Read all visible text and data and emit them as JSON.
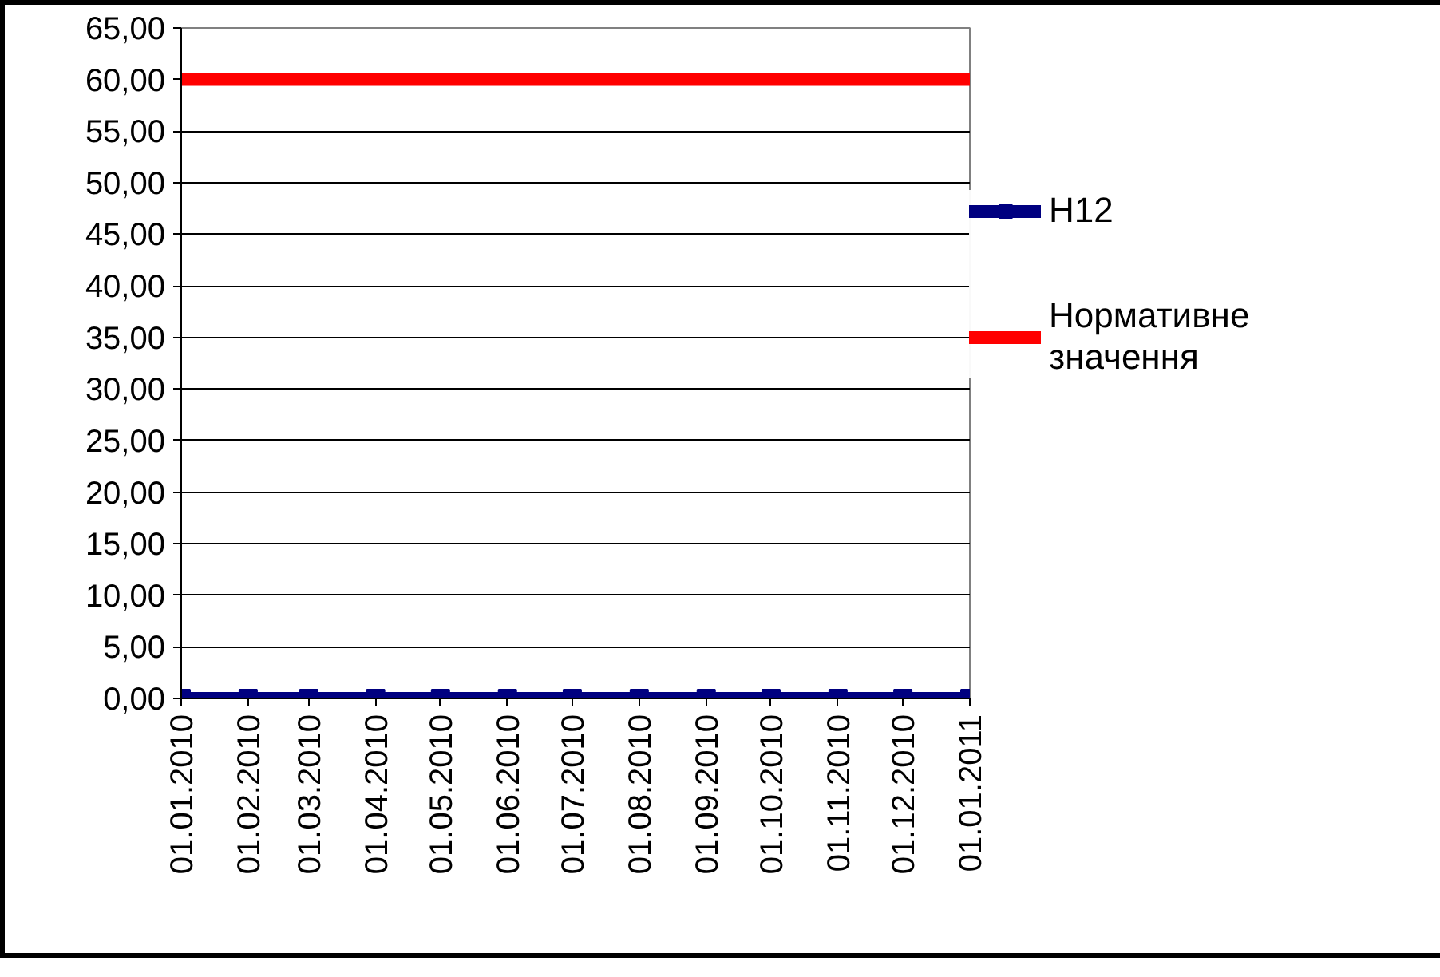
{
  "chart_data": {
    "type": "line",
    "x": [
      "2010-01-01",
      "2010-02-01",
      "2010-03-01",
      "2010-04-01",
      "2010-05-01",
      "2010-06-01",
      "2010-07-01",
      "2010-08-01",
      "2010-09-01",
      "2010-10-01",
      "2010-11-01",
      "2010-12-01",
      "2011-01-01"
    ],
    "series": [
      {
        "name": "Н12",
        "color": "#000080",
        "values": [
          0,
          0,
          0,
          0,
          0,
          0,
          0,
          0,
          0,
          0,
          0,
          0,
          0
        ],
        "marker": "square"
      },
      {
        "name": "Нормативне значення",
        "color": "#ff0000",
        "values": [
          60,
          60,
          60,
          60,
          60,
          60,
          60,
          60,
          60,
          60,
          60,
          60,
          60
        ],
        "marker": "none"
      }
    ],
    "xlim": [
      "2010-01-01",
      "2011-01-01"
    ],
    "xticks": [
      {
        "value": "2010-01-01",
        "label": "01.01.2010"
      },
      {
        "value": "2010-02-01",
        "label": "01.02.2010"
      },
      {
        "value": "2010-03-01",
        "label": "01.03.2010"
      },
      {
        "value": "2010-04-01",
        "label": "01.04.2010"
      },
      {
        "value": "2010-05-01",
        "label": "01.05.2010"
      },
      {
        "value": "2010-06-01",
        "label": "01.06.2010"
      },
      {
        "value": "2010-07-01",
        "label": "01.07.2010"
      },
      {
        "value": "2010-08-01",
        "label": "01.08.2010"
      },
      {
        "value": "2010-09-01",
        "label": "01.09.2010"
      },
      {
        "value": "2010-10-01",
        "label": "01.10.2010"
      },
      {
        "value": "2010-11-01",
        "label": "01.11.2010"
      },
      {
        "value": "2010-12-01",
        "label": "01.12.2010"
      },
      {
        "value": "2011-01-01",
        "label": "01.01.2011"
      }
    ],
    "ylim": [
      0,
      65
    ],
    "yticks": [
      {
        "value": 0,
        "label": "0,00"
      },
      {
        "value": 5,
        "label": "5,00"
      },
      {
        "value": 10,
        "label": "10,00"
      },
      {
        "value": 15,
        "label": "15,00"
      },
      {
        "value": 20,
        "label": "20,00"
      },
      {
        "value": 25,
        "label": "25,00"
      },
      {
        "value": 30,
        "label": "30,00"
      },
      {
        "value": 35,
        "label": "35,00"
      },
      {
        "value": 40,
        "label": "40,00"
      },
      {
        "value": 45,
        "label": "45,00"
      },
      {
        "value": 50,
        "label": "50,00"
      },
      {
        "value": 55,
        "label": "55,00"
      },
      {
        "value": 60,
        "label": "60,00"
      },
      {
        "value": 65,
        "label": "65,00"
      }
    ],
    "grid": "y",
    "legend": "right"
  }
}
